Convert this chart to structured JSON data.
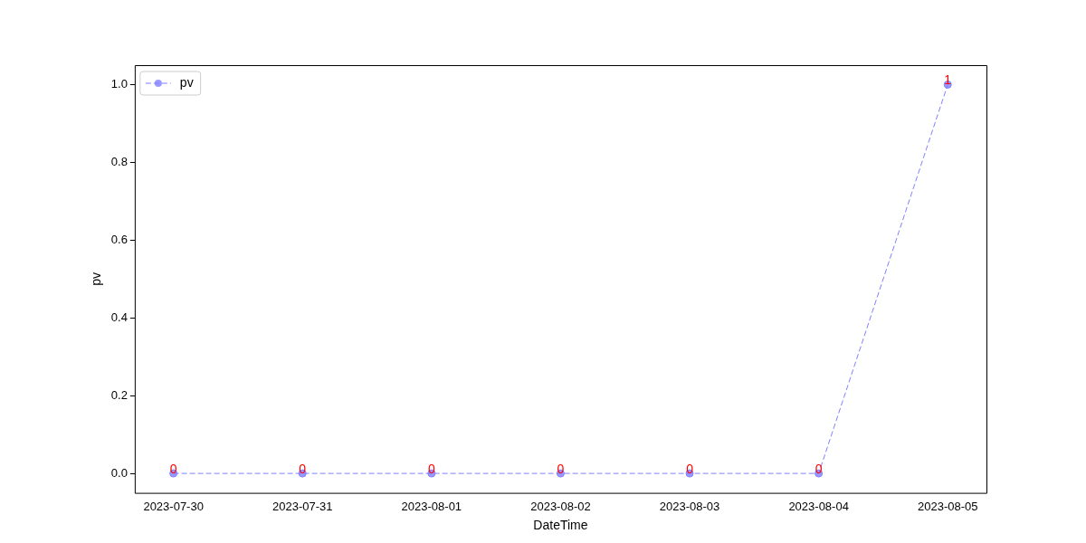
{
  "chart_data": {
    "type": "line",
    "xlabel": "DateTime",
    "ylabel": "pv",
    "categories": [
      "2023-07-30",
      "2023-07-31",
      "2023-08-01",
      "2023-08-02",
      "2023-08-03",
      "2023-08-04",
      "2023-08-05"
    ],
    "series": [
      {
        "name": "pv",
        "color": "#8080ff",
        "values": [
          0,
          0,
          0,
          0,
          0,
          0,
          1
        ]
      }
    ],
    "ylim": [
      -0.05,
      1.05
    ],
    "yticks": [
      {
        "value": 0,
        "label": "0.0"
      },
      {
        "value": 0.2,
        "label": "0.2"
      },
      {
        "value": 0.4,
        "label": "0.4"
      },
      {
        "value": 0.6,
        "label": "0.6"
      },
      {
        "value": 0.8,
        "label": "0.8"
      },
      {
        "value": 1,
        "label": "1.0"
      }
    ],
    "grid": false,
    "legend": "top left",
    "marker": "circle",
    "line_style": "dashed",
    "data_labels": true
  }
}
